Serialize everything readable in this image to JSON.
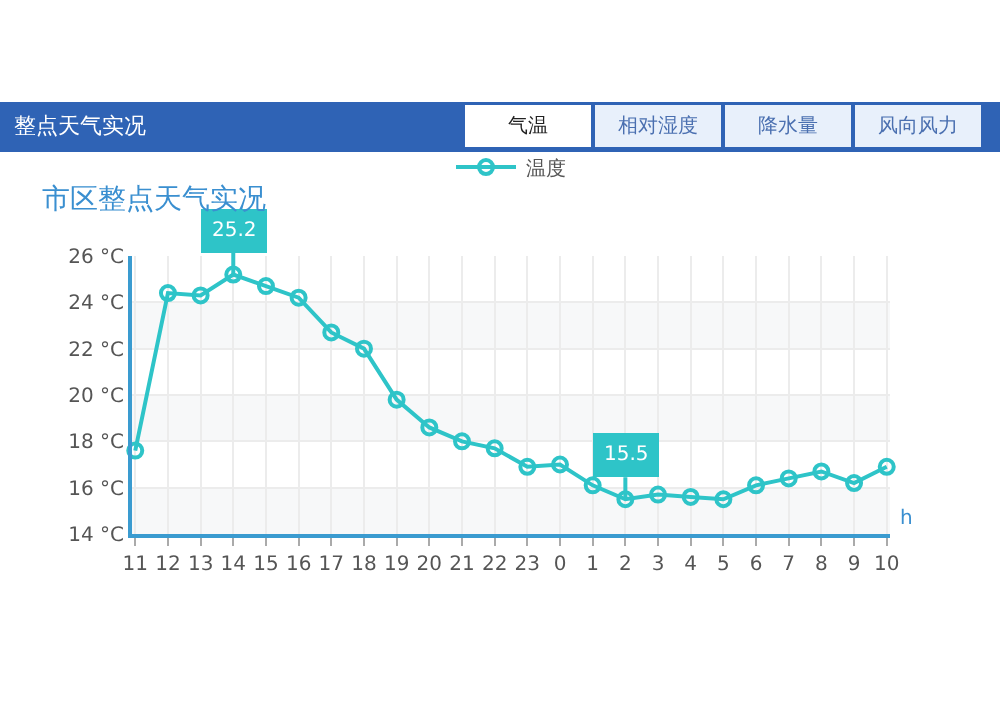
{
  "chart_data": {
    "type": "line",
    "title": "整点天气实况",
    "subtitle": "市区整点天气实况",
    "xlabel": "h",
    "annotations": [
      "气温",
      "相对湿度",
      "降水量",
      "风向风力"
    ],
    "categories": [
      "11",
      "12",
      "13",
      "14",
      "15",
      "16",
      "17",
      "18",
      "19",
      "20",
      "21",
      "22",
      "23",
      "0",
      "1",
      "2",
      "3",
      "4",
      "5",
      "6",
      "7",
      "8",
      "9",
      "10"
    ],
    "series": [
      {
        "name": "温度",
        "color": "#2ec4c8",
        "values": [
          17.6,
          24.4,
          24.3,
          25.2,
          24.7,
          24.2,
          22.7,
          22.0,
          19.8,
          18.6,
          18.0,
          17.7,
          16.9,
          17.0,
          16.1,
          15.5,
          15.7,
          15.6,
          15.5,
          16.1,
          16.4,
          16.7,
          16.2,
          16.9
        ],
        "value_labels": [
          null,
          null,
          null,
          "25.2",
          null,
          null,
          null,
          null,
          null,
          null,
          null,
          null,
          null,
          null,
          null,
          "15.5",
          null,
          null,
          null,
          null,
          null,
          null,
          null,
          null
        ]
      }
    ],
    "ylim": [
      14,
      26
    ],
    "yticks": [
      {
        "value": 14,
        "label": "14 °C"
      },
      {
        "value": 16,
        "label": "16 °C"
      },
      {
        "value": 18,
        "label": "18 °C"
      },
      {
        "value": 20,
        "label": "20 °C"
      },
      {
        "value": 22,
        "label": "22 °C"
      },
      {
        "value": 24,
        "label": "24 °C"
      },
      {
        "value": 26,
        "label": "26 °C"
      }
    ],
    "grid": true,
    "legend": "top",
    "marker": "circle",
    "line_style": "solid"
  }
}
